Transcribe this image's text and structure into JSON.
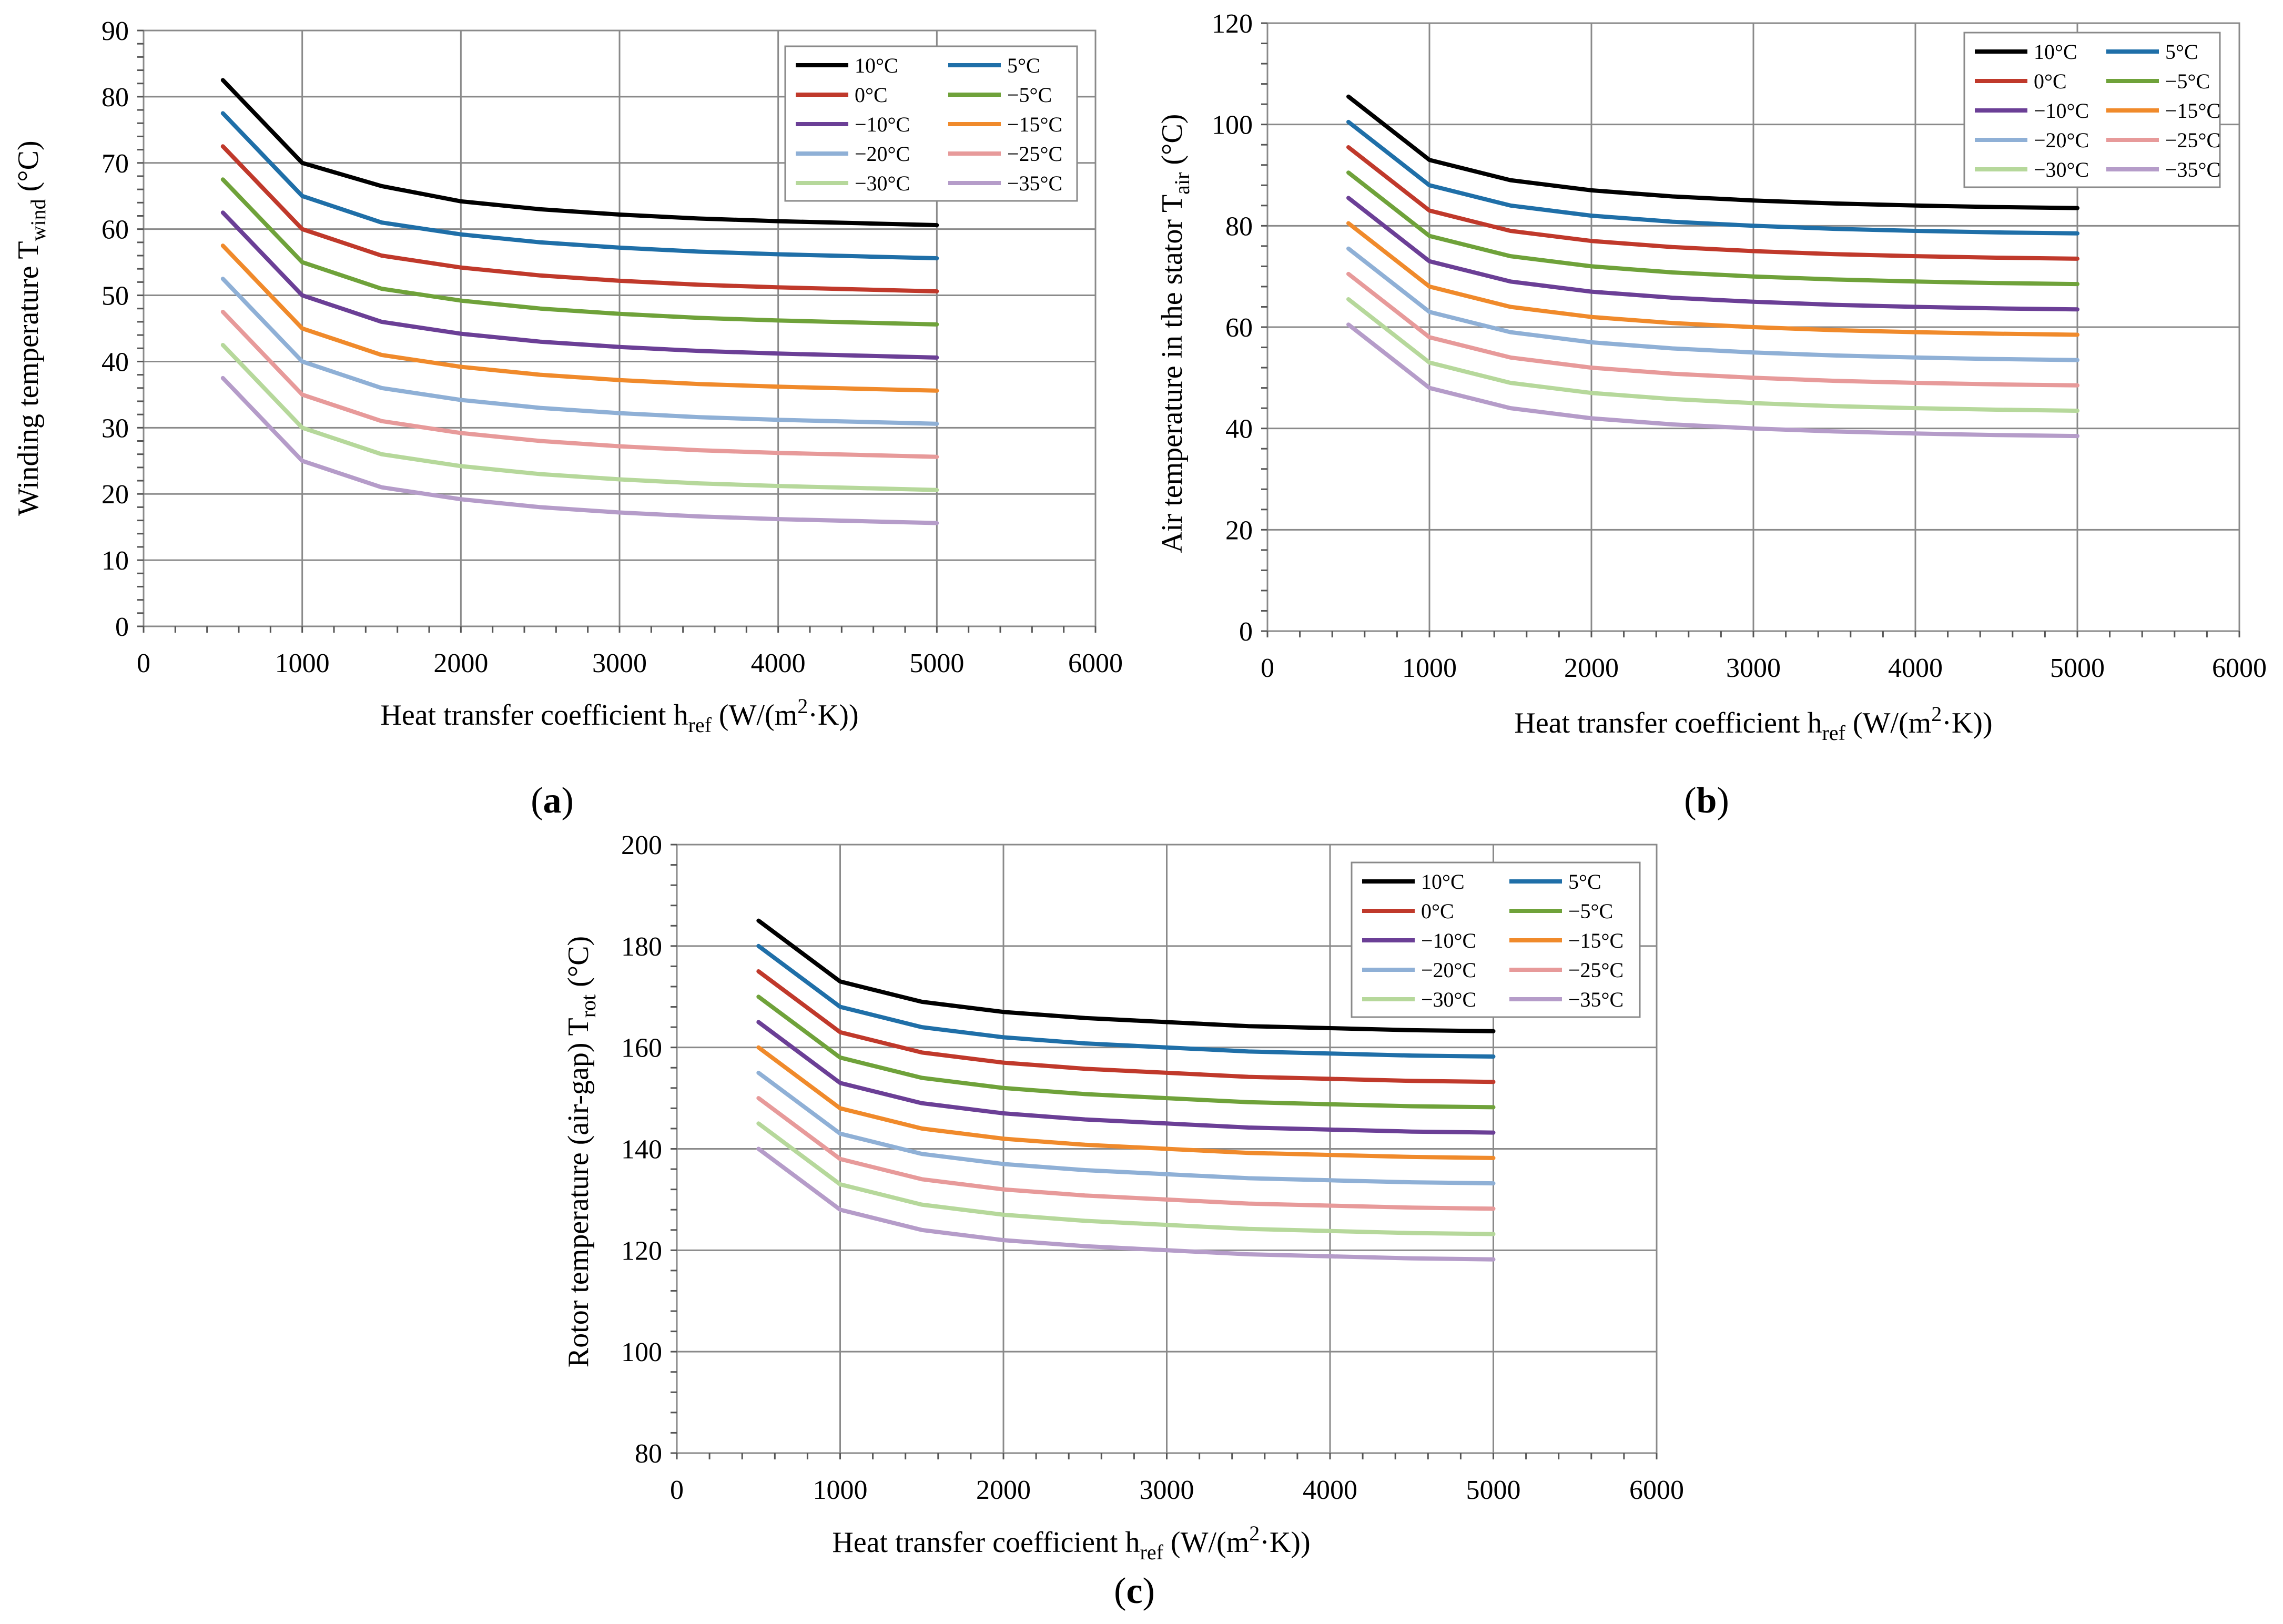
{
  "chart_data": [
    {
      "type": "line",
      "panel": "a",
      "caption": "(a)",
      "xlabel": "Heat transfer coefficient",
      "xlabel_sym": "h",
      "xlabel_sub": "ref",
      "xlabel_unit_pre": " (W/(m",
      "xlabel_unit_sup": "2",
      "xlabel_unit_post": "·K))",
      "ylabel": "Winding temperature",
      "ylabel_sym": "T",
      "ylabel_sub": "wind",
      "ylabel_unit": " (°C)",
      "xlim": [
        0,
        6000
      ],
      "ylim": [
        0,
        90
      ],
      "xticks": [
        0,
        1000,
        2000,
        3000,
        4000,
        5000,
        6000
      ],
      "yticks": [
        0,
        10,
        20,
        30,
        40,
        50,
        60,
        70,
        80,
        90
      ],
      "x": [
        500,
        1000,
        1500,
        2000,
        2500,
        3000,
        3500,
        4000,
        4500,
        5000
      ],
      "grid": true,
      "legend": "top-right",
      "series": [
        {
          "name": "10°C",
          "values": [
            82.5,
            70.0,
            66.5,
            64.2,
            63.0,
            62.2,
            61.6,
            61.2,
            60.9,
            60.6
          ]
        },
        {
          "name": "5°C",
          "values": [
            77.5,
            65.0,
            61.0,
            59.2,
            58.0,
            57.2,
            56.6,
            56.2,
            55.9,
            55.6
          ]
        },
        {
          "name": "0°C",
          "values": [
            72.5,
            60.0,
            56.0,
            54.2,
            53.0,
            52.2,
            51.6,
            51.2,
            50.9,
            50.6
          ]
        },
        {
          "name": "−5°C",
          "values": [
            67.5,
            55.0,
            51.0,
            49.2,
            48.0,
            47.2,
            46.6,
            46.2,
            45.9,
            45.6
          ]
        },
        {
          "name": "−10°C",
          "values": [
            62.5,
            50.0,
            46.0,
            44.2,
            43.0,
            42.2,
            41.6,
            41.2,
            40.9,
            40.6
          ]
        },
        {
          "name": "−15°C",
          "values": [
            57.5,
            45.0,
            41.0,
            39.2,
            38.0,
            37.2,
            36.6,
            36.2,
            35.9,
            35.6
          ]
        },
        {
          "name": "−20°C",
          "values": [
            52.5,
            40.0,
            36.0,
            34.2,
            33.0,
            32.2,
            31.6,
            31.2,
            30.9,
            30.6
          ]
        },
        {
          "name": "−25°C",
          "values": [
            47.5,
            35.0,
            31.0,
            29.2,
            28.0,
            27.2,
            26.6,
            26.2,
            25.9,
            25.6
          ]
        },
        {
          "name": "−30°C",
          "values": [
            42.5,
            30.0,
            26.0,
            24.2,
            23.0,
            22.2,
            21.6,
            21.2,
            20.9,
            20.6
          ]
        },
        {
          "name": "−35°C",
          "values": [
            37.5,
            25.0,
            21.0,
            19.2,
            18.0,
            17.2,
            16.6,
            16.2,
            15.9,
            15.6
          ]
        }
      ]
    },
    {
      "type": "line",
      "panel": "b",
      "caption": "(b)",
      "xlabel": "Heat transfer coefficient",
      "xlabel_sym": "h",
      "xlabel_sub": "ref",
      "xlabel_unit_pre": " (W/(m",
      "xlabel_unit_sup": "2",
      "xlabel_unit_post": "·K))",
      "ylabel": "Air temperature in the stator",
      "ylabel_sym": "T",
      "ylabel_sub": "air",
      "ylabel_unit": " (°C)",
      "xlim": [
        0,
        6000
      ],
      "ylim": [
        0,
        120
      ],
      "xticks": [
        0,
        1000,
        2000,
        3000,
        4000,
        5000,
        6000
      ],
      "yticks": [
        0,
        20,
        40,
        60,
        80,
        100,
        120
      ],
      "x": [
        500,
        1000,
        1500,
        2000,
        2500,
        3000,
        3500,
        4000,
        4500,
        5000
      ],
      "grid": true,
      "legend": "top-right",
      "series": [
        {
          "name": "10°C",
          "values": [
            105.5,
            93.0,
            89.0,
            87.0,
            85.8,
            85.0,
            84.4,
            84.0,
            83.7,
            83.5
          ]
        },
        {
          "name": "5°C",
          "values": [
            100.5,
            88.0,
            84.0,
            82.0,
            80.8,
            80.0,
            79.4,
            79.0,
            78.7,
            78.5
          ]
        },
        {
          "name": "0°C",
          "values": [
            95.5,
            83.0,
            79.0,
            77.0,
            75.8,
            75.0,
            74.4,
            74.0,
            73.7,
            73.5
          ]
        },
        {
          "name": "−5°C",
          "values": [
            90.5,
            78.0,
            74.0,
            72.0,
            70.8,
            70.0,
            69.4,
            69.0,
            68.7,
            68.5
          ]
        },
        {
          "name": "−10°C",
          "values": [
            85.5,
            73.0,
            69.0,
            67.0,
            65.8,
            65.0,
            64.4,
            64.0,
            63.7,
            63.5
          ]
        },
        {
          "name": "−15°C",
          "values": [
            80.5,
            68.0,
            64.0,
            62.0,
            60.8,
            60.0,
            59.4,
            59.0,
            58.7,
            58.5
          ]
        },
        {
          "name": "−20°C",
          "values": [
            75.5,
            63.0,
            59.0,
            57.0,
            55.8,
            55.0,
            54.4,
            54.0,
            53.7,
            53.5
          ]
        },
        {
          "name": "−25°C",
          "values": [
            70.5,
            58.0,
            54.0,
            52.0,
            50.8,
            50.0,
            49.4,
            49.0,
            48.7,
            48.5
          ]
        },
        {
          "name": "−30°C",
          "values": [
            65.5,
            53.0,
            49.0,
            47.0,
            45.8,
            45.0,
            44.4,
            44.0,
            43.7,
            43.5
          ]
        },
        {
          "name": "−35°C",
          "values": [
            60.5,
            48.0,
            44.0,
            42.0,
            40.8,
            40.0,
            39.4,
            39.0,
            38.7,
            38.5
          ]
        }
      ]
    },
    {
      "type": "line",
      "panel": "c",
      "caption": "(c)",
      "xlabel": "Heat transfer coefficient",
      "xlabel_sym": "h",
      "xlabel_sub": "ref",
      "xlabel_unit_pre": " (W/(m",
      "xlabel_unit_sup": "2",
      "xlabel_unit_post": "·K))",
      "ylabel": "Rotor temperature (air-gap)",
      "ylabel_sym": "T",
      "ylabel_sub": "rot",
      "ylabel_unit": " (°C)",
      "xlim": [
        0,
        6000
      ],
      "ylim": [
        80,
        200
      ],
      "xticks": [
        0,
        1000,
        2000,
        3000,
        4000,
        5000,
        6000
      ],
      "yticks": [
        80,
        100,
        120,
        140,
        160,
        180,
        200
      ],
      "x": [
        500,
        1000,
        1500,
        2000,
        2500,
        3000,
        3500,
        4000,
        4500,
        5000
      ],
      "grid": true,
      "legend": "top-right",
      "series": [
        {
          "name": "10°C",
          "values": [
            185.0,
            173.0,
            169.0,
            167.0,
            165.8,
            165.0,
            164.2,
            163.8,
            163.4,
            163.2
          ]
        },
        {
          "name": "5°C",
          "values": [
            180.0,
            168.0,
            164.0,
            162.0,
            160.8,
            160.0,
            159.2,
            158.8,
            158.4,
            158.2
          ]
        },
        {
          "name": "0°C",
          "values": [
            175.0,
            163.0,
            159.0,
            157.0,
            155.8,
            155.0,
            154.2,
            153.8,
            153.4,
            153.2
          ]
        },
        {
          "name": "−5°C",
          "values": [
            170.0,
            158.0,
            154.0,
            152.0,
            150.8,
            150.0,
            149.2,
            148.8,
            148.4,
            148.2
          ]
        },
        {
          "name": "−10°C",
          "values": [
            165.0,
            153.0,
            149.0,
            147.0,
            145.8,
            145.0,
            144.2,
            143.8,
            143.4,
            143.2
          ]
        },
        {
          "name": "−15°C",
          "values": [
            160.0,
            148.0,
            144.0,
            142.0,
            140.8,
            140.0,
            139.2,
            138.8,
            138.4,
            138.2
          ]
        },
        {
          "name": "−20°C",
          "values": [
            155.0,
            143.0,
            139.0,
            137.0,
            135.8,
            135.0,
            134.2,
            133.8,
            133.4,
            133.2
          ]
        },
        {
          "name": "−25°C",
          "values": [
            150.0,
            138.0,
            134.0,
            132.0,
            130.8,
            130.0,
            129.2,
            128.8,
            128.4,
            128.2
          ]
        },
        {
          "name": "−30°C",
          "values": [
            145.0,
            133.0,
            129.0,
            127.0,
            125.8,
            125.0,
            124.2,
            123.8,
            123.4,
            123.2
          ]
        },
        {
          "name": "−35°C",
          "values": [
            140.0,
            128.0,
            124.0,
            122.0,
            120.8,
            120.0,
            119.2,
            118.8,
            118.4,
            118.2
          ]
        }
      ]
    }
  ],
  "series_colors": [
    "#000000",
    "#1f6fa8",
    "#c0392b",
    "#6fa23a",
    "#6b3f96",
    "#f08a2b",
    "#8fb0d6",
    "#e79a9a",
    "#b6d89b",
    "#b59cc9"
  ]
}
